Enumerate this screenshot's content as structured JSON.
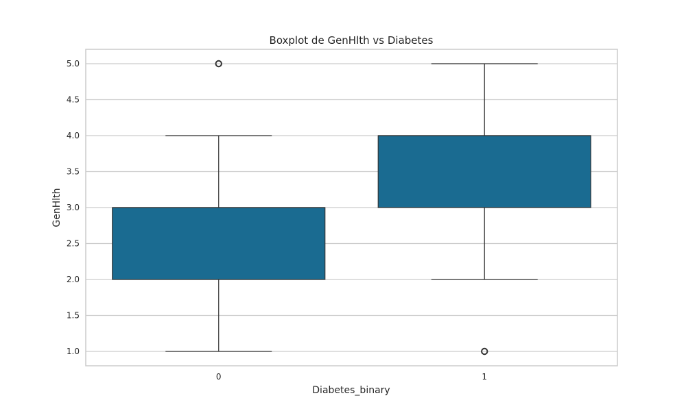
{
  "chart_data": {
    "type": "box",
    "title": "Boxplot de GenHlth vs Diabetes",
    "xlabel": "Diabetes_binary",
    "ylabel": "GenHlth",
    "categories": [
      "0",
      "1"
    ],
    "ylim": [
      0.8,
      5.2
    ],
    "yticks": [
      1.0,
      1.5,
      2.0,
      2.5,
      3.0,
      3.5,
      4.0,
      4.5,
      5.0
    ],
    "ytick_labels": [
      "1.0",
      "1.5",
      "2.0",
      "2.5",
      "3.0",
      "3.5",
      "4.0",
      "4.5",
      "5.0"
    ],
    "grid": true,
    "boxes": [
      {
        "category": "0",
        "whisker_low": 1.0,
        "q1": 2.0,
        "median": 3.0,
        "q3": 3.0,
        "whisker_high": 4.0,
        "outliers": [
          5.0
        ]
      },
      {
        "category": "1",
        "whisker_low": 2.0,
        "q1": 3.0,
        "median": 4.0,
        "q3": 4.0,
        "whisker_high": 5.0,
        "outliers": [
          1.0
        ]
      }
    ],
    "colors": {
      "box_fill": "#1a6b91",
      "line": "#333333",
      "grid": "#cccccc",
      "frame": "#cccccc"
    }
  }
}
